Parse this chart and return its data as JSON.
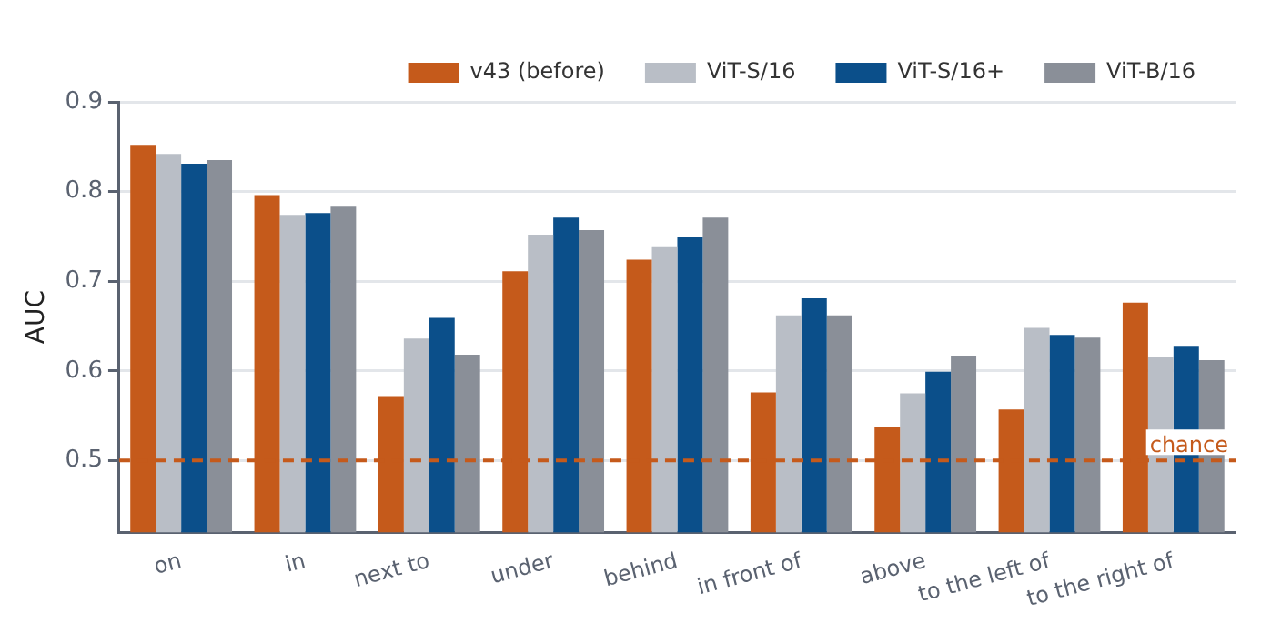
{
  "chart_data": {
    "type": "bar",
    "ylabel": "AUC",
    "categories": [
      "on",
      "in",
      "next to",
      "under",
      "behind",
      "in front of",
      "above",
      "to the left of",
      "to the right of"
    ],
    "series": [
      {
        "name": "v43 (before)",
        "color": "#c55a1b",
        "values": [
          0.852,
          0.796,
          0.572,
          0.711,
          0.724,
          0.576,
          0.537,
          0.557,
          0.676
        ]
      },
      {
        "name": "ViT-S/16",
        "color": "#b9bec6",
        "values": [
          0.842,
          0.774,
          0.636,
          0.752,
          0.738,
          0.662,
          0.575,
          0.648,
          0.616
        ]
      },
      {
        "name": "ViT-S/16+",
        "color": "#0b4f8a",
        "values": [
          0.831,
          0.776,
          0.659,
          0.771,
          0.749,
          0.681,
          0.599,
          0.64,
          0.628
        ]
      },
      {
        "name": "ViT-B/16",
        "color": "#8a8f98",
        "values": [
          0.835,
          0.783,
          0.618,
          0.757,
          0.771,
          0.662,
          0.617,
          0.637,
          0.612
        ]
      }
    ],
    "ylim": [
      0.42,
      0.9
    ],
    "yticks": [
      0.5,
      0.6,
      0.7,
      0.8,
      0.9
    ],
    "grid": "y",
    "legend": "top right",
    "ref_lines": [
      {
        "axis": "y",
        "value": 0.5,
        "label": "chance",
        "color": "#c55a1b",
        "line_style": "dashed"
      }
    ]
  }
}
